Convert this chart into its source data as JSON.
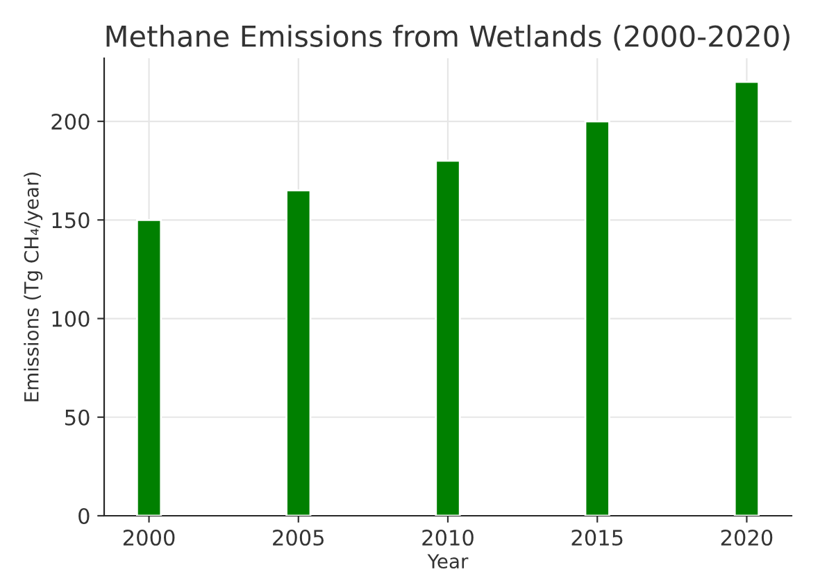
{
  "chart_data": {
    "type": "bar",
    "title": "Methane Emissions from Wetlands (2000-2020)",
    "xlabel": "Year",
    "ylabel": "Emissions (Tg CH₄/year)",
    "x": [
      2000,
      2005,
      2010,
      2015,
      2020
    ],
    "series": [
      {
        "color": "#008000",
        "values": [
          150,
          165,
          180,
          200,
          220
        ]
      }
    ],
    "xlim": [
      1998.5,
      2021.5
    ],
    "xticks": [
      2000,
      2005,
      2010,
      2015,
      2020
    ],
    "ylim": [
      0,
      232
    ],
    "yticks": [
      0,
      50,
      100,
      150,
      200
    ],
    "grid": true
  }
}
